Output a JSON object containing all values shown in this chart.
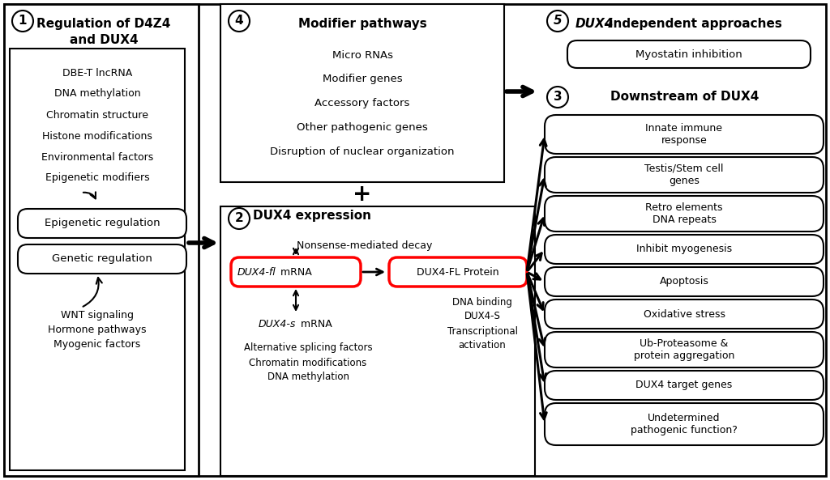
{
  "bg_color": "#ffffff",
  "fig_width": 10.24,
  "fig_height": 5.93,
  "section1_title": "Regulation of D4Z4\nand DUX4",
  "section1_items": [
    "DBE-T lncRNA",
    "DNA methylation",
    "Chromatin structure",
    "Histone modifications",
    "Environmental factors",
    "Epigenetic modifiers"
  ],
  "section1_epigenetic": "Epigenetic regulation",
  "section1_genetic": "Genetic regulation",
  "section1_wnt": "WNT signaling\nHormone pathways\nMyogenic factors",
  "section2_title": "DUX4 expression",
  "section2_nmd": "Nonsense-mediated decay",
  "section2_mrna_italic": "DUX4-fl",
  "section2_mrna_normal": " mRNA",
  "section2_protein": "DUX4-FL Protein",
  "section2_dux4s_italic": "DUX4-s",
  "section2_dux4s_normal": " mRNA",
  "section2_below": "Alternative splicing factors\nChromatin modifications\nDNA methylation",
  "section2_right": "DNA binding\nDUX4-S\nTranscriptional\nactivation",
  "section3_title": "Downstream of DUX4",
  "section3_items": [
    "Innate immune\nresponse",
    "Testis/Stem cell\ngenes",
    "Retro elements\nDNA repeats",
    "Inhibit myogenesis",
    "Apoptosis",
    "Oxidative stress",
    "Ub-Proteasome &\nprotein aggregation",
    "DUX4 target genes",
    "Undetermined\npathogenic function?"
  ],
  "section4_title": "Modifier pathways",
  "section4_items": [
    "Micro RNAs",
    "Modifier genes",
    "Accessory factors",
    "Other pathogenic genes",
    "Disruption of nuclear organization"
  ],
  "section5_title_italic": "DUX4",
  "section5_title_rest": "-independent approaches",
  "section5_myostatin": "Myostatin inhibition"
}
